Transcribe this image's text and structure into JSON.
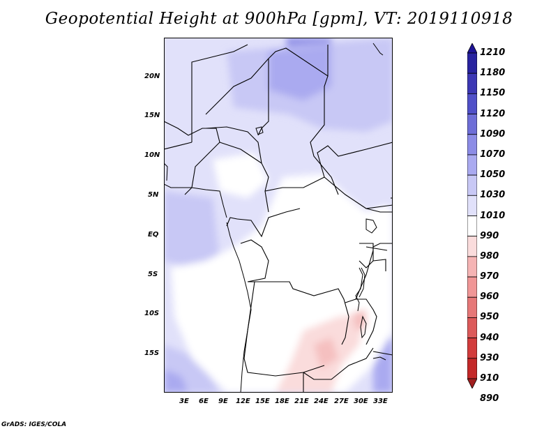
{
  "title": "Geopotential Height at 900hPa [gpm], VT: 2019110918",
  "footer": "GrADS: IGES/COLA",
  "map": {
    "lat_labels": [
      "20N",
      "15N",
      "10N",
      "5N",
      "EQ",
      "5S",
      "10S",
      "15S"
    ],
    "lon_labels": [
      "3E",
      "6E",
      "9E",
      "12E",
      "15E",
      "18E",
      "21E",
      "24E",
      "27E",
      "30E",
      "33E"
    ],
    "lon_range": [
      0,
      35
    ],
    "lat_range": [
      -20,
      25
    ]
  },
  "colorbar": {
    "levels": [
      "1210",
      "1180",
      "1150",
      "1120",
      "1090",
      "1070",
      "1050",
      "1030",
      "1010",
      "990",
      "980",
      "970",
      "960",
      "950",
      "940",
      "930",
      "910",
      "890"
    ],
    "colors": [
      "#1e1496",
      "#28239f",
      "#3c37b4",
      "#5050c8",
      "#6e6ed7",
      "#8c8ce6",
      "#aaaaf0",
      "#c8c8f5",
      "#e1e1fa",
      "#ffffff",
      "#fadcdc",
      "#f5b4b4",
      "#f09696",
      "#e67878",
      "#dc5a5a",
      "#d23c3c",
      "#c32828",
      "#a01e1e"
    ]
  },
  "chart_data": {
    "type": "heatmap",
    "title": "Geopotential Height at 900hPa [gpm], VT: 2019110918",
    "variable": "Geopotential Height",
    "units": "gpm",
    "level": "900hPa",
    "valid_time": "2019110918",
    "lon_range": [
      0,
      35
    ],
    "lat_range": [
      -20,
      25
    ],
    "contour_levels": [
      890,
      910,
      930,
      940,
      950,
      960,
      970,
      980,
      990,
      1010,
      1030,
      1050,
      1070,
      1090,
      1120,
      1150,
      1180,
      1210
    ]
  }
}
